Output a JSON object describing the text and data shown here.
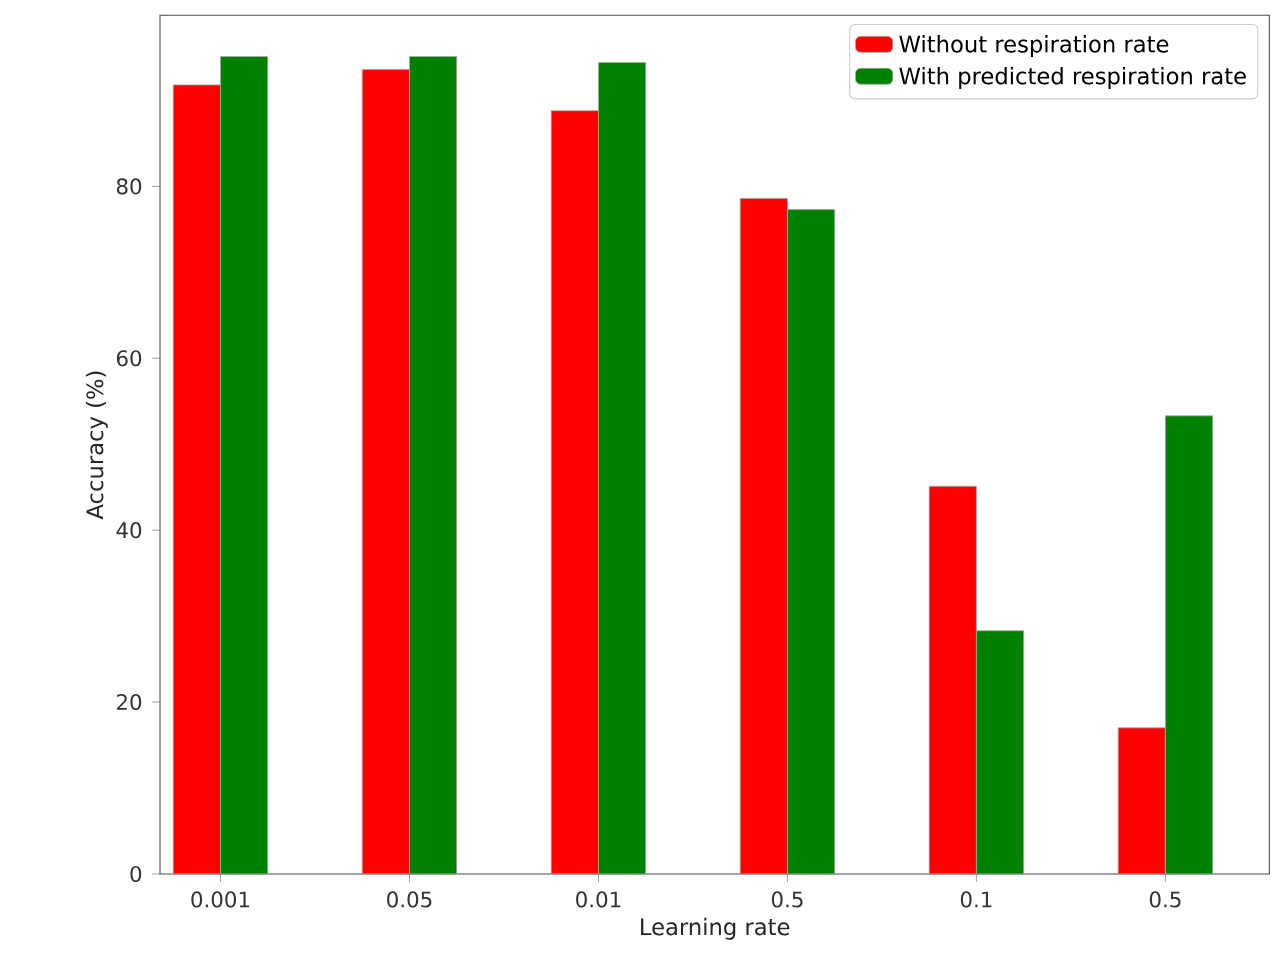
{
  "chart_data": {
    "type": "bar",
    "xlabel": "Learning rate",
    "ylabel": "Accuracy (%)",
    "categories": [
      "0.001",
      "0.05",
      "0.01",
      "0.5",
      "0.1",
      "0.5"
    ],
    "series": [
      {
        "name": "Without respiration rate",
        "color": "#ff0000",
        "values": [
          91.8,
          93.6,
          88.8,
          78.6,
          45.1,
          17.0
        ]
      },
      {
        "name": "With predicted respiration rate",
        "color": "#008000",
        "values": [
          95.1,
          95.1,
          94.4,
          77.3,
          28.3,
          53.3
        ]
      }
    ],
    "ylim": [
      0,
      99.9
    ],
    "yticks": [
      0,
      20,
      40,
      60,
      80
    ],
    "legend": "top right"
  }
}
